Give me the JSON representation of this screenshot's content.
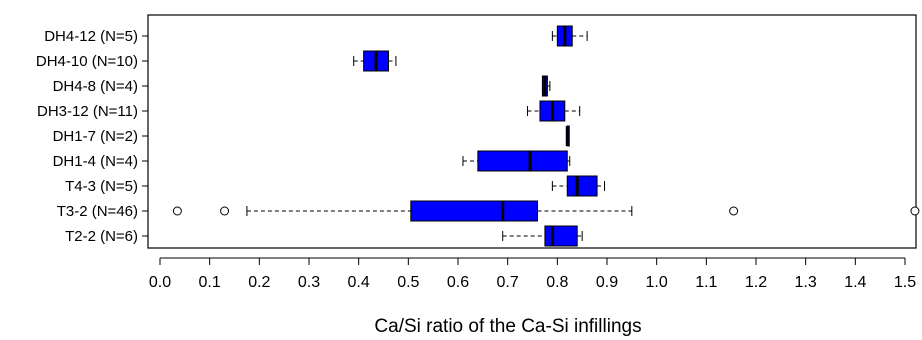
{
  "chart_data": {
    "type": "boxplot",
    "orientation": "horizontal",
    "xlabel": "Ca/Si ratio of the Ca-Si infillings",
    "xlim": [
      0.0,
      1.5
    ],
    "xticks": [
      "0.0",
      "0.1",
      "0.2",
      "0.3",
      "0.4",
      "0.5",
      "0.6",
      "0.7",
      "0.8",
      "0.9",
      "1.0",
      "1.1",
      "1.2",
      "1.3",
      "1.4",
      "1.5"
    ],
    "grid": false,
    "box_color": "#0000ff",
    "categories": [
      {
        "label": "DH4-12 (N=5)",
        "min": 0.79,
        "q1": 0.8,
        "median": 0.815,
        "q3": 0.83,
        "max": 0.86,
        "outliers": []
      },
      {
        "label": "DH4-10 (N=10)",
        "min": 0.39,
        "q1": 0.41,
        "median": 0.435,
        "q3": 0.46,
        "max": 0.475,
        "outliers": []
      },
      {
        "label": "DH4-8 (N=4)",
        "min": 0.77,
        "q1": 0.77,
        "median": 0.775,
        "q3": 0.78,
        "max": 0.785,
        "outliers": []
      },
      {
        "label": "DH3-12 (N=11)",
        "min": 0.74,
        "q1": 0.765,
        "median": 0.79,
        "q3": 0.815,
        "max": 0.845,
        "outliers": []
      },
      {
        "label": "DH1-7 (N=2)",
        "min": 0.82,
        "q1": 0.82,
        "median": 0.82,
        "q3": 0.823,
        "max": 0.823,
        "outliers": []
      },
      {
        "label": "DH1-4 (N=4)",
        "min": 0.61,
        "q1": 0.64,
        "median": 0.745,
        "q3": 0.82,
        "max": 0.825,
        "outliers": []
      },
      {
        "label": "T4-3 (N=5)",
        "min": 0.79,
        "q1": 0.82,
        "median": 0.84,
        "q3": 0.88,
        "max": 0.895,
        "outliers": []
      },
      {
        "label": "T3-2 (N=46)",
        "min": 0.175,
        "q1": 0.505,
        "median": 0.69,
        "q3": 0.76,
        "max": 0.95,
        "outliers": [
          0.035,
          0.13,
          1.155,
          1.52
        ]
      },
      {
        "label": "T2-2 (N=6)",
        "min": 0.69,
        "q1": 0.775,
        "median": 0.79,
        "q3": 0.84,
        "max": 0.85,
        "outliers": []
      }
    ]
  }
}
